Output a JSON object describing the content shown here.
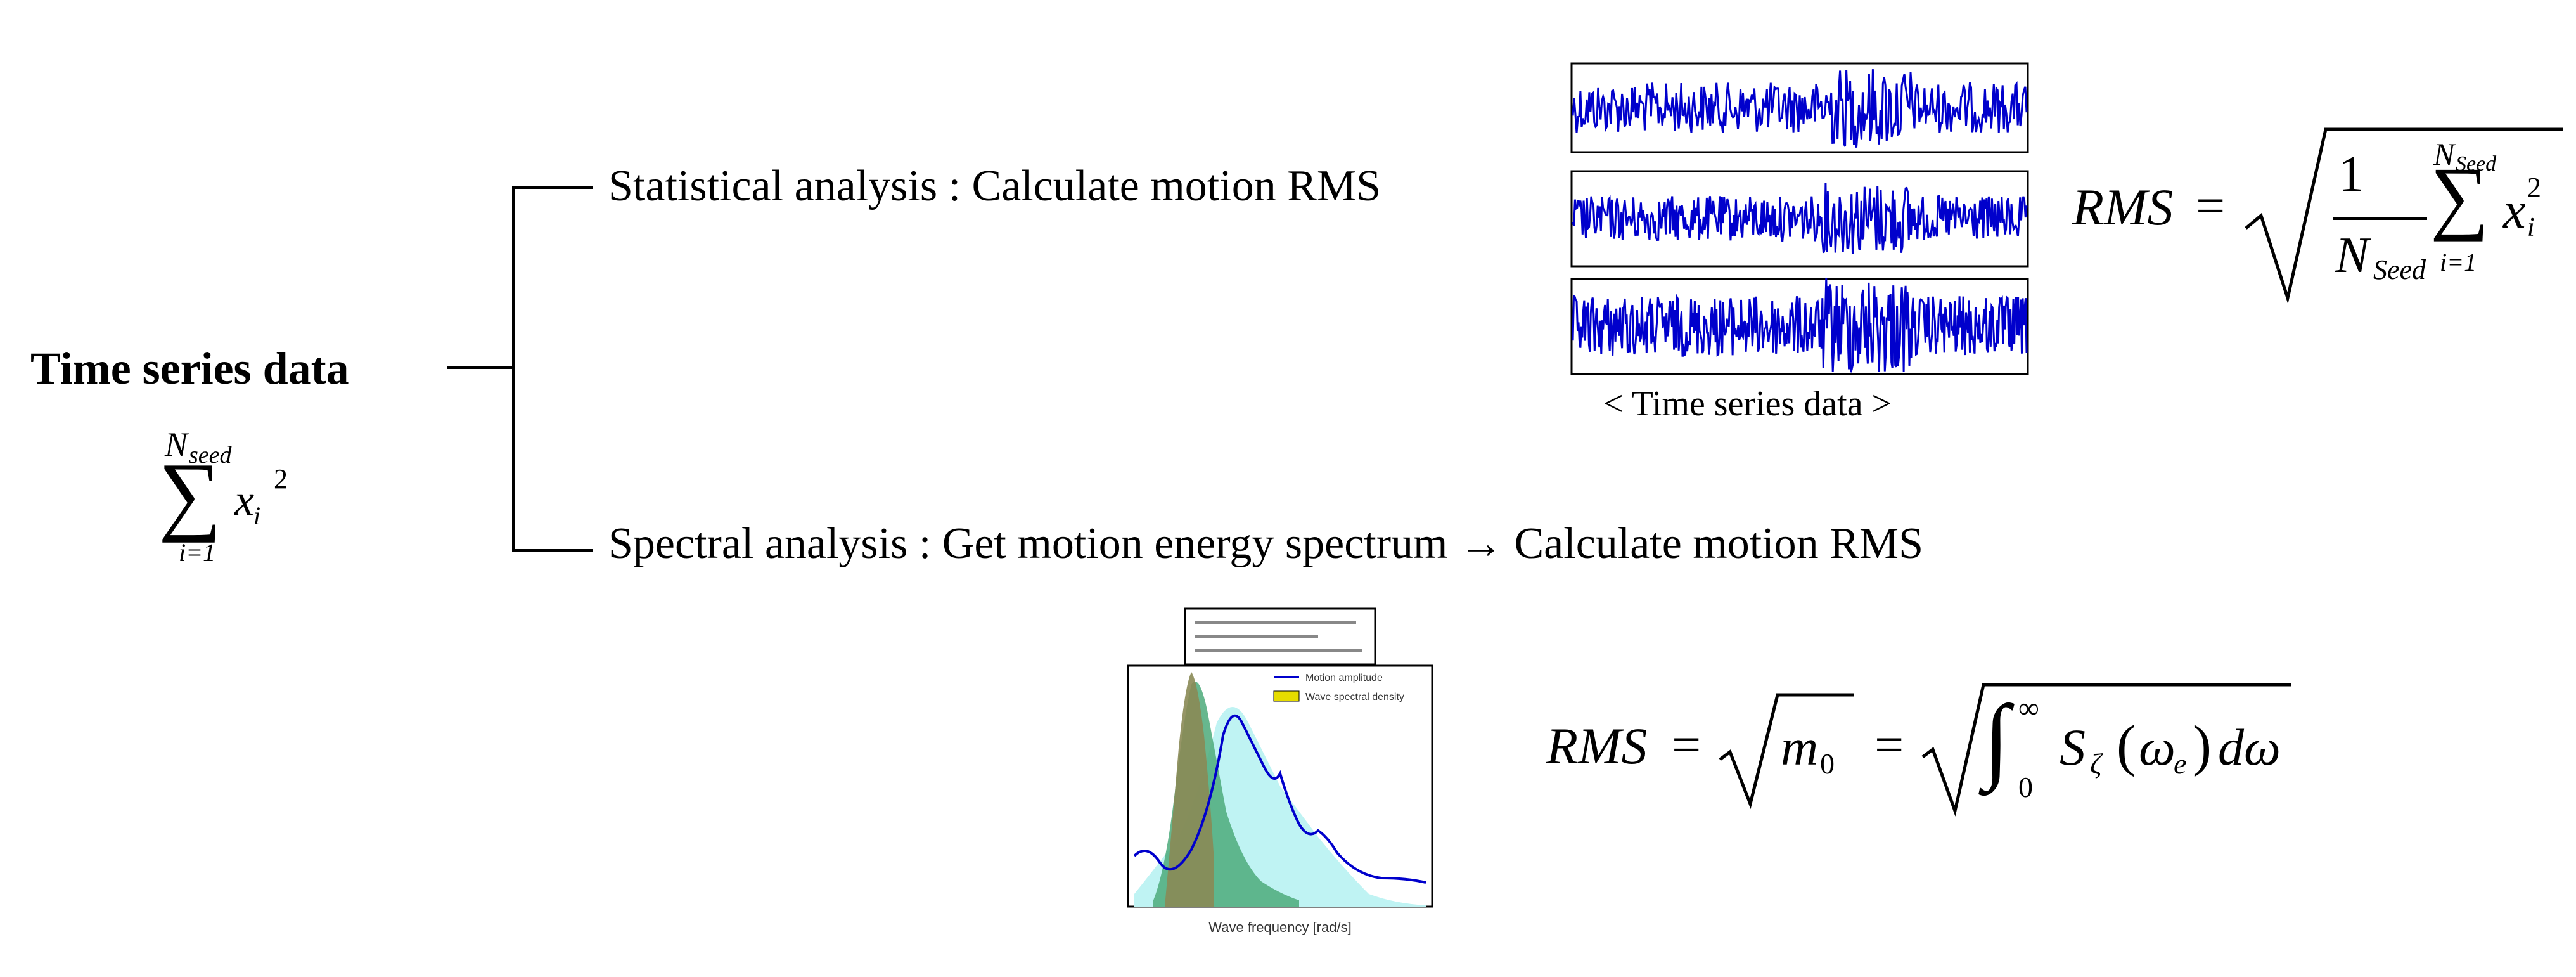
{
  "root": {
    "title": "Time series data",
    "sum_upper": "N",
    "sum_upper_sub": "seed",
    "sum_lower": "i=1",
    "sum_term": "x",
    "sum_term_sub": "i",
    "sum_term_sup": "2"
  },
  "branches": {
    "statistical_label": "Statistical analysis : Calculate motion RMS",
    "spectral_label": "Spectral analysis : Get motion energy spectrum → Calculate motion RMS"
  },
  "time_series_figure": {
    "caption": "< Time series data >"
  },
  "formula_statistical": {
    "lhs": "RMS",
    "eq": "=",
    "numerator": "1",
    "denominator": "N",
    "denominator_sub": "Seed",
    "sum_upper": "N",
    "sum_upper_sub": "Seed",
    "sum_lower": "i=1",
    "term": "x",
    "term_sub": "i",
    "term_sup": "2"
  },
  "formula_spectral": {
    "lhs": "RMS",
    "eq1": "=",
    "m0": "m",
    "m0_sub": "0",
    "eq2": "=",
    "int_upper": "∞",
    "int_lower": "0",
    "integrand": "S",
    "integrand_sub": "ζ",
    "omega_e": "ω",
    "omega_e_sub": "e",
    "differential": "dω"
  },
  "spectrum_figure": {
    "xlabel": "Wave frequency [rad/s]",
    "legend": [
      "Motion amplitude",
      "Wave spectral density"
    ]
  },
  "colors": {
    "line": "#000000",
    "signal": "#0000cc",
    "spectrum_fill_yellow": "#e6dc00",
    "spectrum_fill_cyan": "#bff3f3",
    "spectrum_fill_green": "#4caa7a"
  }
}
